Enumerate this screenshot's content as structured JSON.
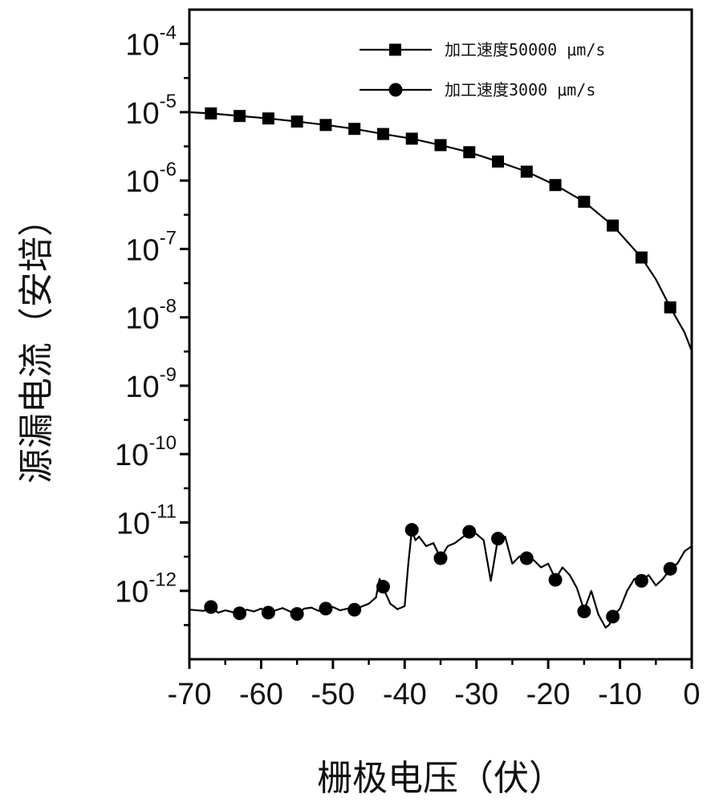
{
  "chart_data": {
    "type": "line",
    "title": "",
    "xlabel": "栅极电压（伏）",
    "ylabel": "源漏电流（安培）",
    "xlim": [
      -70,
      0
    ],
    "ylim_log10": [
      -13,
      -3.5
    ],
    "y_scale": "log",
    "x_ticks": [
      -70,
      -60,
      -50,
      -40,
      -30,
      -20,
      -10,
      0
    ],
    "x_tick_labels": [
      "-70",
      "-60",
      "-50",
      "-40",
      "-30",
      "-20",
      "-10",
      "0"
    ],
    "y_ticks": [
      {
        "base": "10",
        "exp": "-4",
        "value": 0.0001
      },
      {
        "base": "10",
        "exp": "-5",
        "value": 1e-05
      },
      {
        "base": "10",
        "exp": "-6",
        "value": 1e-06
      },
      {
        "base": "10",
        "exp": "-7",
        "value": 1e-07
      },
      {
        "base": "10",
        "exp": "-8",
        "value": 1e-08
      },
      {
        "base": "10",
        "exp": "-9",
        "value": 1e-09
      },
      {
        "base": "10",
        "exp": "-10",
        "value": 1e-10
      },
      {
        "base": "10",
        "exp": "-11",
        "value": 1e-11
      },
      {
        "base": "10",
        "exp": "-12",
        "value": 1e-12
      }
    ],
    "legend_position": "top-right",
    "series": [
      {
        "name": "加工速度50000 μm/s",
        "marker": "square",
        "color": "#000000",
        "line": [
          [
            -70,
            1e-05
          ],
          [
            -67,
            9.6e-06
          ],
          [
            -63,
            8.8e-06
          ],
          [
            -59,
            8.1e-06
          ],
          [
            -55,
            7.3e-06
          ],
          [
            -51,
            6.5e-06
          ],
          [
            -47,
            5.7e-06
          ],
          [
            -43,
            4.8e-06
          ],
          [
            -39,
            4.1e-06
          ],
          [
            -35,
            3.3e-06
          ],
          [
            -31,
            2.6e-06
          ],
          [
            -27,
            1.9e-06
          ],
          [
            -23,
            1.35e-06
          ],
          [
            -19,
            8.6e-07
          ],
          [
            -15,
            4.9e-07
          ],
          [
            -11,
            2.2e-07
          ],
          [
            -7,
            7.5e-08
          ],
          [
            -5,
            3.6e-08
          ],
          [
            -3,
            1.4e-08
          ],
          [
            -1,
            6e-09
          ],
          [
            0,
            3.2e-09
          ]
        ],
        "points": [
          [
            -67,
            9.6e-06
          ],
          [
            -63,
            8.8e-06
          ],
          [
            -59,
            8.1e-06
          ],
          [
            -55,
            7.3e-06
          ],
          [
            -51,
            6.5e-06
          ],
          [
            -47,
            5.7e-06
          ],
          [
            -43,
            4.8e-06
          ],
          [
            -39,
            4.1e-06
          ],
          [
            -35,
            3.3e-06
          ],
          [
            -31,
            2.6e-06
          ],
          [
            -27,
            1.9e-06
          ],
          [
            -23,
            1.35e-06
          ],
          [
            -19,
            8.6e-07
          ],
          [
            -15,
            4.9e-07
          ],
          [
            -11,
            2.2e-07
          ],
          [
            -7,
            7.5e-08
          ],
          [
            -3,
            1.4e-08
          ]
        ]
      },
      {
        "name": "加工速度3000 μm/s",
        "marker": "circle",
        "color": "#000000",
        "line": [
          [
            -70,
            5.3e-13
          ],
          [
            -68,
            5.1e-13
          ],
          [
            -67,
            5.8e-13
          ],
          [
            -66,
            4.8e-13
          ],
          [
            -65,
            5.2e-13
          ],
          [
            -64,
            4.9e-13
          ],
          [
            -63,
            4.7e-13
          ],
          [
            -62,
            5.3e-13
          ],
          [
            -61,
            5e-13
          ],
          [
            -60,
            5.5e-13
          ],
          [
            -59,
            4.8e-13
          ],
          [
            -58,
            5.2e-13
          ],
          [
            -57,
            5.6e-13
          ],
          [
            -56,
            5e-13
          ],
          [
            -55,
            4.6e-13
          ],
          [
            -54,
            5.5e-13
          ],
          [
            -53,
            5.7e-13
          ],
          [
            -52,
            5.1e-13
          ],
          [
            -51,
            5.5e-13
          ],
          [
            -50,
            5.8e-13
          ],
          [
            -49,
            5.2e-13
          ],
          [
            -48,
            5.5e-13
          ],
          [
            -47,
            5.3e-13
          ],
          [
            -46,
            5.9e-13
          ],
          [
            -45,
            6.5e-13
          ],
          [
            -44,
            8e-13
          ],
          [
            -43.5,
            1.5e-12
          ],
          [
            -43,
            1.1e-12
          ],
          [
            -42,
            6.5e-13
          ],
          [
            -41,
            5.4e-13
          ],
          [
            -40,
            6e-13
          ],
          [
            -39.5,
            2.5e-12
          ],
          [
            -39,
            7.8e-12
          ],
          [
            -38.5,
            5.5e-12
          ],
          [
            -38,
            6.2e-12
          ],
          [
            -37,
            4.5e-12
          ],
          [
            -36,
            5e-12
          ],
          [
            -35,
            3e-12
          ],
          [
            -34,
            4.5e-12
          ],
          [
            -33,
            5e-12
          ],
          [
            -32,
            6e-12
          ],
          [
            -31,
            7.3e-12
          ],
          [
            -30,
            6.8e-12
          ],
          [
            -29,
            5.5e-12
          ],
          [
            -28,
            1.4e-12
          ],
          [
            -27,
            5.8e-12
          ],
          [
            -26,
            6.2e-12
          ],
          [
            -25,
            2.5e-12
          ],
          [
            -24,
            3.2e-12
          ],
          [
            -23,
            3e-12
          ],
          [
            -22,
            2.8e-12
          ],
          [
            -21,
            2.2e-12
          ],
          [
            -20,
            2.5e-12
          ],
          [
            -19,
            1.5e-12
          ],
          [
            -18,
            2.2e-12
          ],
          [
            -17,
            1.7e-12
          ],
          [
            -16,
            1.1e-12
          ],
          [
            -15,
            5.2e-13
          ],
          [
            -14,
            1e-12
          ],
          [
            -13,
            4.5e-13
          ],
          [
            -12,
            2.9e-13
          ],
          [
            -11.5,
            3.2e-13
          ],
          [
            -11,
            4.2e-13
          ],
          [
            -10,
            5.5e-13
          ],
          [
            -9,
            1e-12
          ],
          [
            -8,
            1.5e-12
          ],
          [
            -7,
            1.4e-12
          ],
          [
            -6,
            1.7e-12
          ],
          [
            -5,
            1.2e-12
          ],
          [
            -4,
            1.5e-12
          ],
          [
            -3,
            2.1e-12
          ],
          [
            -2,
            2.5e-12
          ],
          [
            -1,
            3.8e-12
          ],
          [
            0,
            4.5e-12
          ]
        ],
        "points": [
          [
            -67,
            5.8e-13
          ],
          [
            -63,
            4.7e-13
          ],
          [
            -59,
            4.8e-13
          ],
          [
            -55,
            4.6e-13
          ],
          [
            -51,
            5.5e-13
          ],
          [
            -47,
            5.3e-13
          ],
          [
            -43,
            1.15e-12
          ],
          [
            -39,
            7.8e-12
          ],
          [
            -35,
            3e-12
          ],
          [
            -31,
            7.3e-12
          ],
          [
            -27,
            5.8e-12
          ],
          [
            -23,
            3e-12
          ],
          [
            -19,
            1.45e-12
          ],
          [
            -15,
            5e-13
          ],
          [
            -11,
            4.2e-13
          ],
          [
            -7,
            1.4e-12
          ],
          [
            -3,
            2.1e-12
          ]
        ]
      }
    ]
  }
}
